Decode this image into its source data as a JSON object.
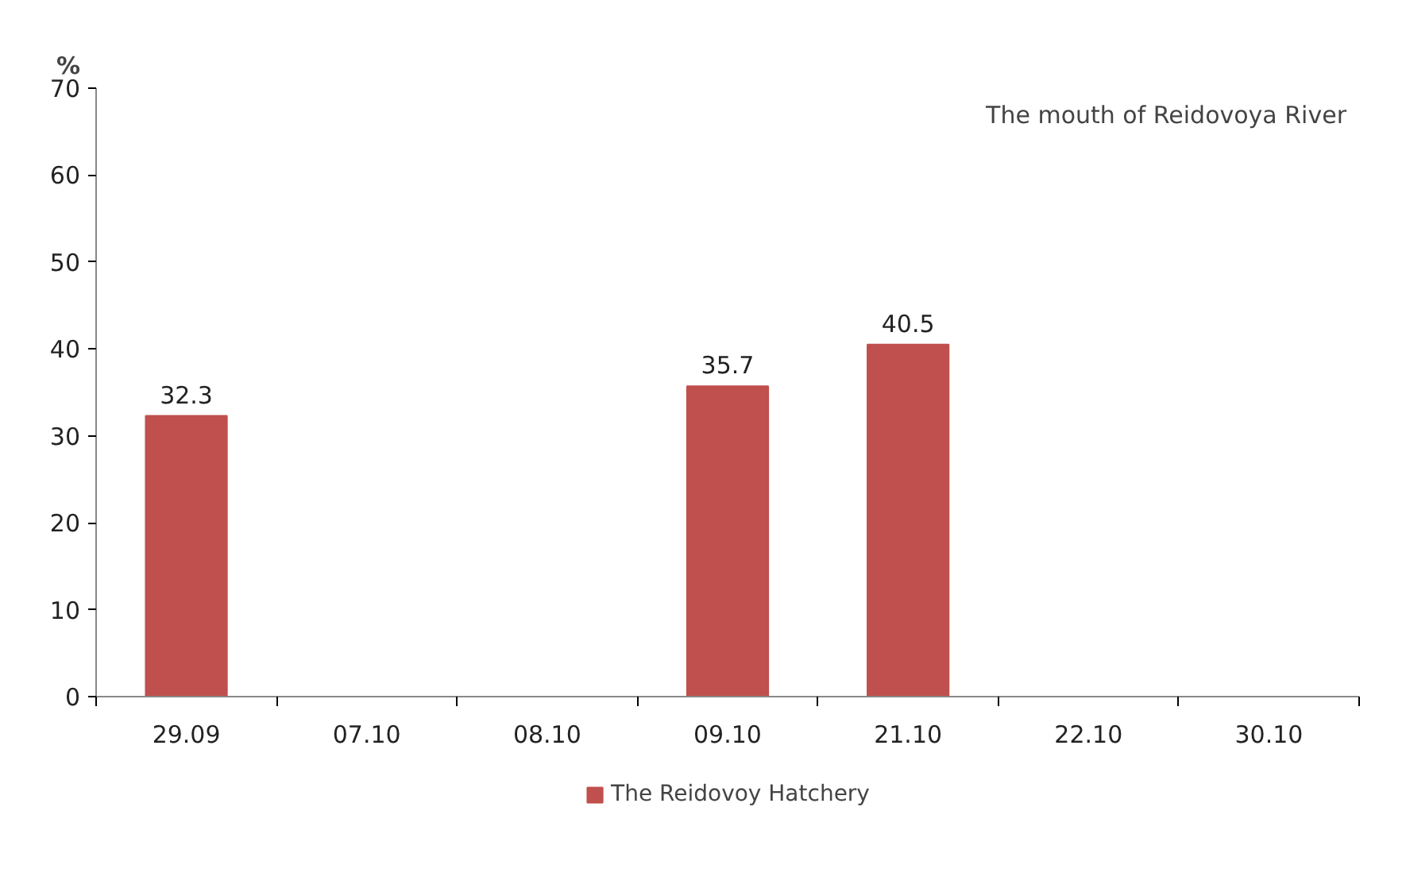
{
  "chart_data": {
    "type": "bar",
    "ylabel": "%",
    "categories": [
      "29.09",
      "07.10",
      "08.10",
      "09.10",
      "21.10",
      "22.10",
      "30.10"
    ],
    "series": [
      {
        "name": "The Reidovoy Hatchery",
        "color": "#c0504d",
        "values": [
          32.3,
          null,
          null,
          35.7,
          40.5,
          null,
          null
        ]
      }
    ],
    "ylim": [
      0,
      70
    ],
    "yticks": [
      0,
      10,
      20,
      30,
      40,
      50,
      60,
      70
    ],
    "annotations": [
      "The mouth of Reidovoya River"
    ],
    "data_labels": true,
    "grid": false,
    "legend": "bottom"
  }
}
